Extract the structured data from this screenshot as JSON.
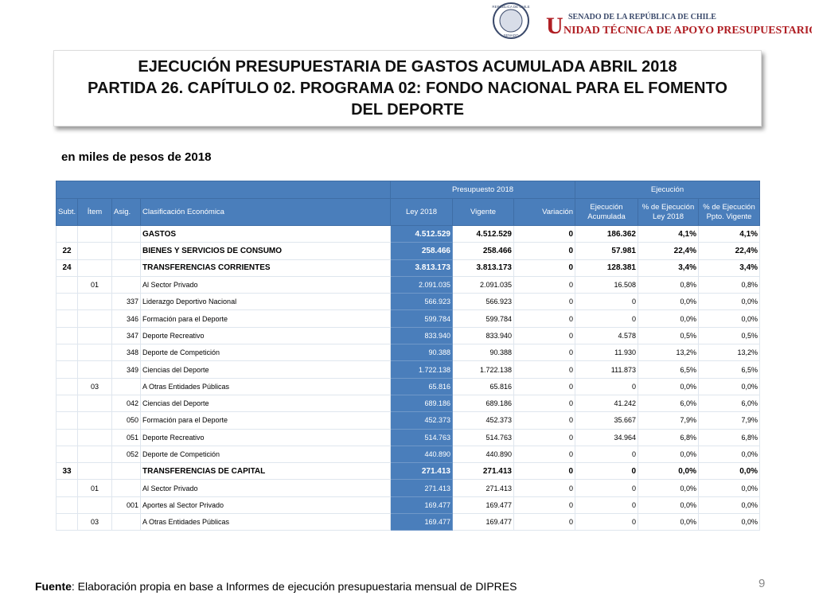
{
  "header": {
    "seal_top": "REPÚBLICA DE CHILE",
    "seal_bottom": "SENADO",
    "org_line1": "SENADO DE LA REPÚBLICA DE CHILE",
    "org_initial": "U",
    "org_line2": "NIDAD TÉCNICA DE APOYO PRESUPUESTARIO"
  },
  "title": [
    "EJECUCIÓN PRESUPUESTARIA DE GASTOS ACUMULADA ABRIL 2018",
    "PARTIDA 26. CAPÍTULO 02. PROGRAMA 02:  FONDO NACIONAL PARA EL FOMENTO DEL DEPORTE"
  ],
  "subtitle": "en miles de pesos de 2018",
  "table": {
    "groups": [
      "Presupuesto 2018",
      "Ejecución"
    ],
    "columns": [
      "Subt.",
      "Ítem",
      "Asig.",
      "Clasificación Económica",
      "Ley 2018",
      "Vigente",
      "Variación",
      "Ejecución Acumulada",
      "% de Ejecución Ley 2018",
      "% de Ejecución Ppto. Vigente"
    ],
    "rows": [
      [
        null,
        null,
        null,
        "GASTOS",
        "4.512.529",
        "4.512.529",
        "0",
        "186.362",
        "4,1%",
        "4,1%"
      ],
      [
        "22",
        null,
        null,
        "BIENES Y SERVICIOS DE CONSUMO",
        "258.466",
        "258.466",
        "0",
        "57.981",
        "22,4%",
        "22,4%"
      ],
      [
        "24",
        null,
        null,
        "TRANSFERENCIAS CORRIENTES",
        "3.813.173",
        "3.813.173",
        "0",
        "128.381",
        "3,4%",
        "3,4%"
      ],
      [
        null,
        "01",
        null,
        "Al Sector Privado",
        "2.091.035",
        "2.091.035",
        "0",
        "16.508",
        "0,8%",
        "0,8%"
      ],
      [
        null,
        null,
        "337",
        "Liderazgo Deportivo Nacional",
        "566.923",
        "566.923",
        "0",
        "0",
        "0,0%",
        "0,0%"
      ],
      [
        null,
        null,
        "346",
        "Formación para el Deporte",
        "599.784",
        "599.784",
        "0",
        "0",
        "0,0%",
        "0,0%"
      ],
      [
        null,
        null,
        "347",
        "Deporte Recreativo",
        "833.940",
        "833.940",
        "0",
        "4.578",
        "0,5%",
        "0,5%"
      ],
      [
        null,
        null,
        "348",
        "Deporte de Competición",
        "90.388",
        "90.388",
        "0",
        "11.930",
        "13,2%",
        "13,2%"
      ],
      [
        null,
        null,
        "349",
        "Ciencias del Deporte",
        "1.722.138",
        "1.722.138",
        "0",
        "111.873",
        "6,5%",
        "6,5%"
      ],
      [
        null,
        "03",
        null,
        "A Otras Entidades Públicas",
        "65.816",
        "65.816",
        "0",
        "0",
        "0,0%",
        "0,0%"
      ],
      [
        null,
        null,
        "042",
        "Ciencias del Deporte",
        "689.186",
        "689.186",
        "0",
        "41.242",
        "6,0%",
        "6,0%"
      ],
      [
        null,
        null,
        "050",
        "Formación para el Deporte",
        "452.373",
        "452.373",
        "0",
        "35.667",
        "7,9%",
        "7,9%"
      ],
      [
        null,
        null,
        "051",
        "Deporte Recreativo",
        "514.763",
        "514.763",
        "0",
        "34.964",
        "6,8%",
        "6,8%"
      ],
      [
        null,
        null,
        "052",
        "Deporte de Competición",
        "440.890",
        "440.890",
        "0",
        "0",
        "0,0%",
        "0,0%"
      ],
      [
        "33",
        null,
        null,
        "TRANSFERENCIAS DE CAPITAL",
        "271.413",
        "271.413",
        "0",
        "0",
        "0,0%",
        "0,0%"
      ],
      [
        null,
        "01",
        null,
        "Al Sector Privado",
        "271.413",
        "271.413",
        "0",
        "0",
        "0,0%",
        "0,0%"
      ],
      [
        null,
        null,
        "001",
        "Aportes al Sector Privado",
        "169.477",
        "169.477",
        "0",
        "0",
        "0,0%",
        "0,0%"
      ],
      [
        null,
        "03",
        null,
        "A Otras Entidades Públicas",
        "169.477",
        "169.477",
        "0",
        "0",
        "0,0%",
        "0,0%"
      ]
    ]
  },
  "footer": {
    "source_label": "Fuente",
    "source_text": ": Elaboración propia en base  a Informes de ejecución presupuestaria mensual de DIPRES",
    "page": "9"
  }
}
